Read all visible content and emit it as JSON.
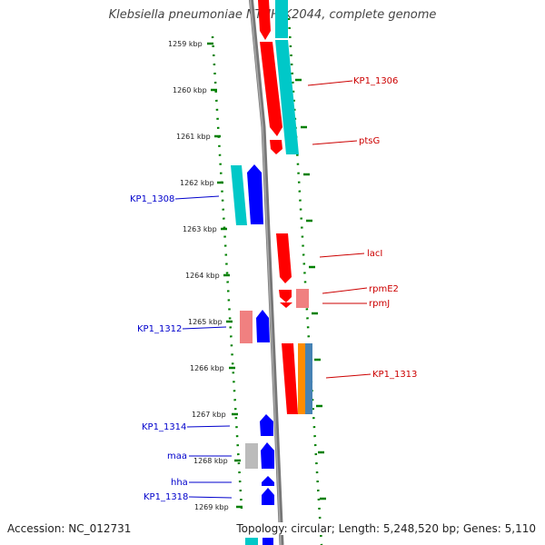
{
  "header": {
    "title": "Klebsiella pneumoniae NTUH-K2044, complete genome"
  },
  "footer": {
    "accession": "Accession: NC_012731",
    "summary": "Topology: circular; Length: 5,248,520 bp; Genes: 5,110"
  },
  "map": {
    "unit": "kbp",
    "ticks": [
      "1259 kbp",
      "1260 kbp",
      "1261 kbp",
      "1262 kbp",
      "1263 kbp",
      "1264 kbp",
      "1265 kbp",
      "1266 kbp",
      "1267 kbp",
      "1268 kbp",
      "1269 kbp"
    ],
    "right_labels": [
      "KP1_1306",
      "ptsG",
      "lacI",
      "rpmE2",
      "rpmJ",
      "KP1_1313"
    ],
    "left_labels": [
      "KP1_1308",
      "KP1_1312",
      "KP1_1314",
      "maa",
      "hha",
      "KP1_1318"
    ],
    "colors": {
      "forward": "#ff0000",
      "forward_light": "#f08080",
      "reverse": "#0000ff",
      "cyan": "#00c8c8",
      "gray": "#bbbbbb",
      "orange": "#ff8c00",
      "steelblue": "#4682b4",
      "green_dots": "#008000",
      "right_text": "#cc0000",
      "left_text": "#0000cc"
    }
  }
}
